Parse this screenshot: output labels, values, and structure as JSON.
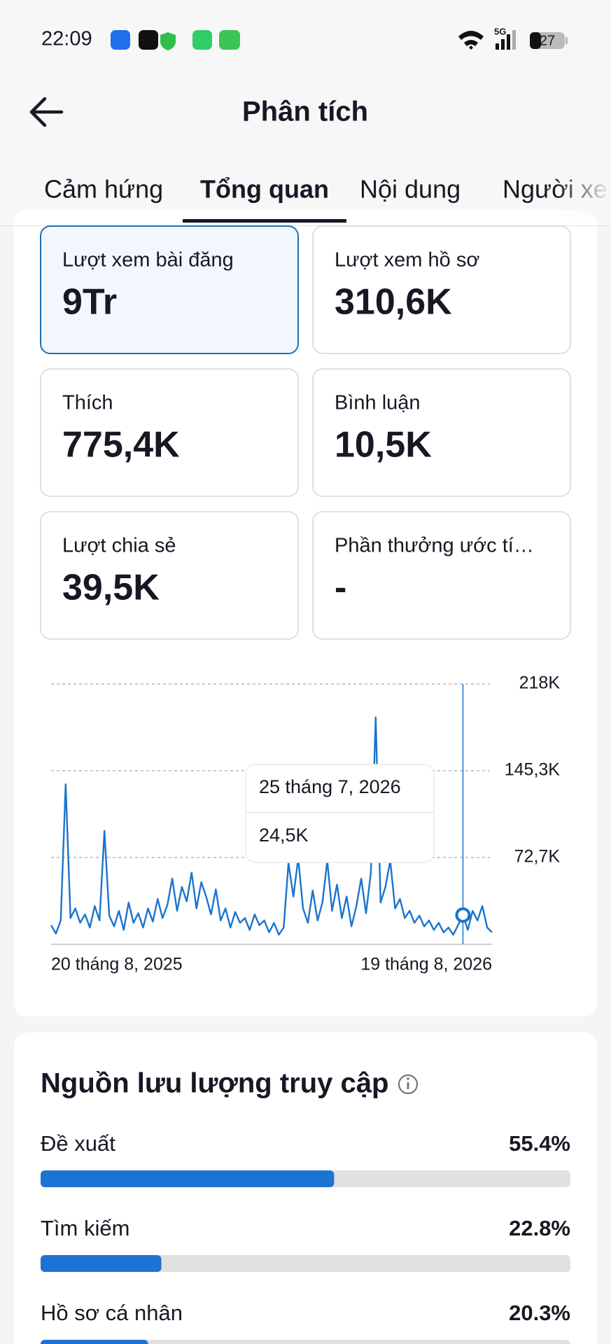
{
  "status_bar": {
    "time": "22:09",
    "battery": "27"
  },
  "header": {
    "title": "Phân tích"
  },
  "tabs": [
    "Cảm hứng",
    "Tổng quan",
    "Nội dung",
    "Người xe"
  ],
  "metrics": [
    {
      "label": "Lượt xem bài đăng",
      "value": "9Tr"
    },
    {
      "label": "Lượt xem hồ sơ",
      "value": "310,6K"
    },
    {
      "label": "Thích",
      "value": "775,4K"
    },
    {
      "label": "Bình luận",
      "value": "10,5K"
    },
    {
      "label": "Lượt chia sẻ",
      "value": "39,5K"
    },
    {
      "label": "Phần thưởng ước tí…",
      "value": "-"
    }
  ],
  "chart_data": {
    "type": "line",
    "color": "#1b74cc",
    "grid": true,
    "ylim": [
      0,
      218000
    ],
    "yticks": [
      {
        "value": 72700,
        "label": "72,7K"
      },
      {
        "value": 145300,
        "label": "145,3K"
      },
      {
        "value": 218000,
        "label": "218K"
      }
    ],
    "categories": [
      "20 tháng 8, 2025",
      null,
      null,
      null,
      null,
      null,
      null,
      null,
      null,
      null,
      null,
      null,
      null,
      null,
      null,
      null,
      null,
      null,
      null,
      null,
      null,
      null,
      null,
      null,
      null,
      null,
      null,
      null,
      null,
      null,
      null,
      null,
      null,
      null,
      null,
      null,
      null,
      null,
      null,
      null,
      null,
      null,
      null,
      null,
      null,
      null,
      null,
      null,
      null,
      null,
      null,
      null,
      null,
      null,
      null,
      null,
      null,
      null,
      null,
      null,
      null,
      null,
      null,
      null,
      null,
      null,
      null,
      null,
      null,
      null,
      null,
      null,
      null,
      null,
      null,
      null,
      null,
      null,
      null,
      null,
      null,
      null,
      null,
      null,
      null,
      "25 tháng 7, 2026",
      null,
      null,
      null,
      null,
      null,
      "19 tháng 8, 2026"
    ],
    "values": [
      16000,
      9000,
      20000,
      134000,
      22000,
      30000,
      18000,
      25000,
      14000,
      32000,
      20000,
      95000,
      24000,
      15000,
      28000,
      12000,
      35000,
      18000,
      26000,
      14000,
      30000,
      19000,
      38000,
      22000,
      33000,
      55000,
      28000,
      48000,
      36000,
      60000,
      30000,
      52000,
      40000,
      25000,
      46000,
      20000,
      30000,
      14000,
      27000,
      18000,
      22000,
      12000,
      25000,
      16000,
      20000,
      10000,
      18000,
      8000,
      14000,
      68000,
      40000,
      72000,
      30000,
      18000,
      45000,
      20000,
      35000,
      70000,
      28000,
      50000,
      22000,
      40000,
      15000,
      32000,
      55000,
      26000,
      60000,
      190000,
      35000,
      48000,
      70000,
      30000,
      38000,
      22000,
      28000,
      18000,
      24000,
      15000,
      20000,
      12000,
      18000,
      10000,
      14000,
      8000,
      16000,
      24500,
      12000,
      28000,
      20000,
      32000,
      14000,
      10000
    ],
    "value_labels": [
      null,
      null,
      null,
      null,
      null,
      null,
      null,
      null,
      null,
      null,
      null,
      null,
      null,
      null,
      null,
      null,
      null,
      null,
      null,
      null,
      null,
      null,
      null,
      null,
      null,
      null,
      null,
      null,
      null,
      null,
      null,
      null,
      null,
      null,
      null,
      null,
      null,
      null,
      null,
      null,
      null,
      null,
      null,
      null,
      null,
      null,
      null,
      null,
      null,
      null,
      null,
      null,
      null,
      null,
      null,
      null,
      null,
      null,
      null,
      null,
      null,
      null,
      null,
      null,
      null,
      null,
      null,
      null,
      null,
      null,
      null,
      null,
      null,
      null,
      null,
      null,
      null,
      null,
      null,
      null,
      null,
      null,
      null,
      null,
      null,
      "24,5K",
      null,
      null,
      null,
      null,
      null,
      null
    ]
  },
  "traffic": {
    "title": "Nguồn lưu lượng truy cập",
    "sources": [
      {
        "name": "Đề xuất",
        "value": 55.4,
        "value_label": "55.4%"
      },
      {
        "name": "Tìm kiếm",
        "value": 22.8,
        "value_label": "22.8%"
      },
      {
        "name": "Hồ sơ cá nhân",
        "value": 20.3,
        "value_label": "20.3%"
      }
    ]
  }
}
